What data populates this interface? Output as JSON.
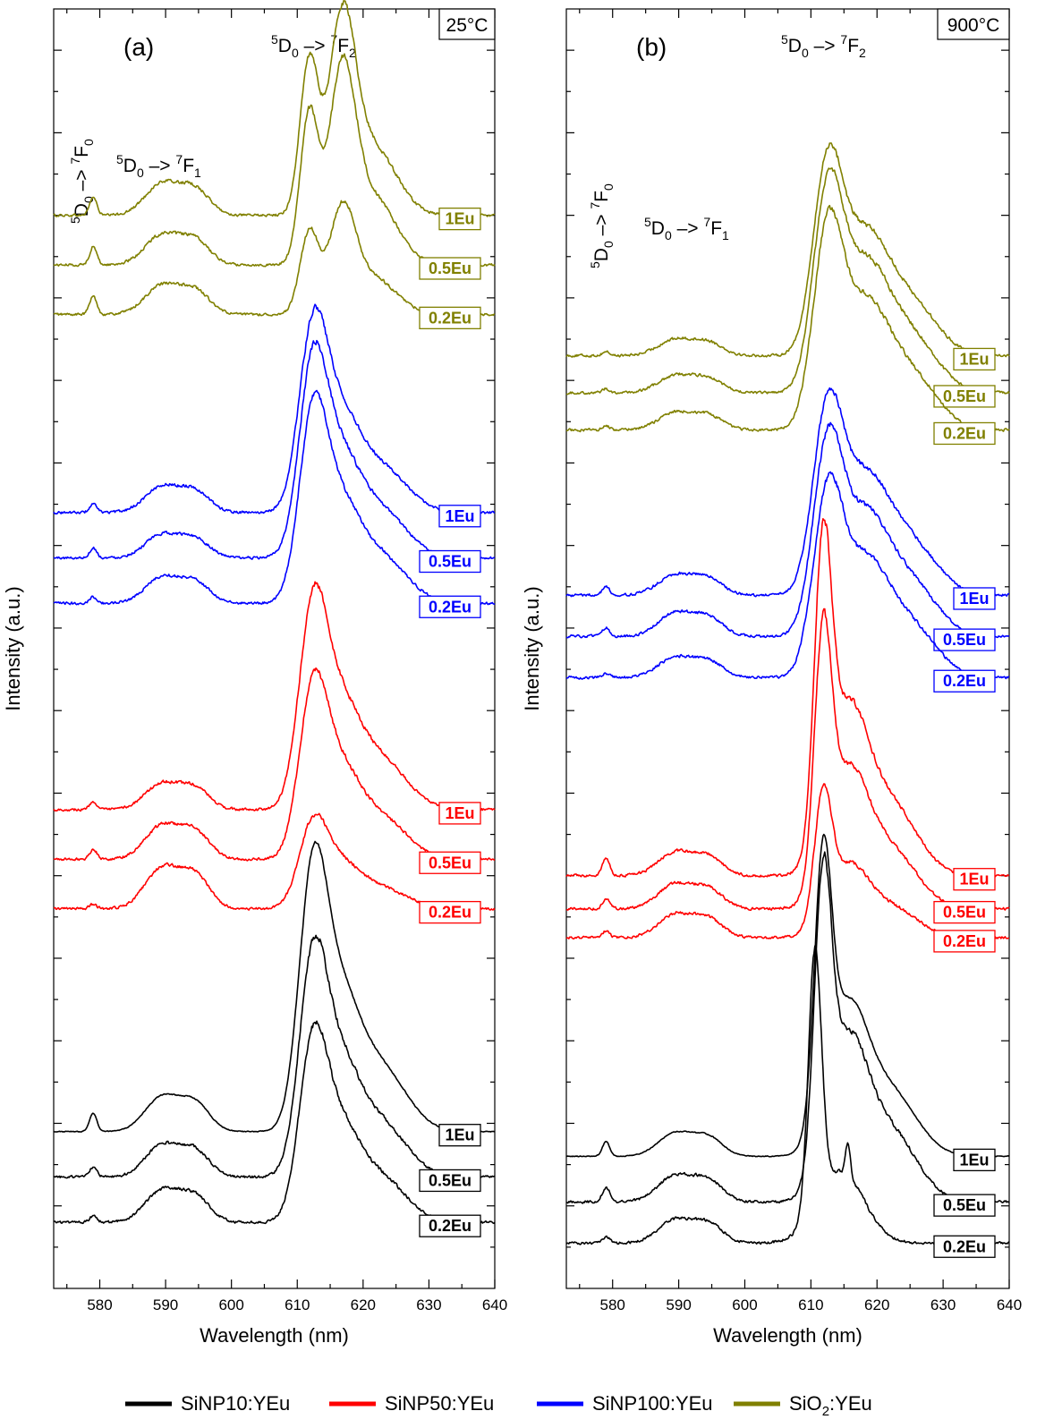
{
  "chart_data": [
    {
      "type": "line",
      "panel": "(a)",
      "temperature_label": "25°C",
      "xlabel": "Wavelength (nm)",
      "ylabel": "Intensity (a.u.)",
      "xlim": [
        573,
        640
      ],
      "xticks": [
        580,
        590,
        600,
        610,
        620,
        630,
        640
      ],
      "yticks_labeled": false,
      "layout": "vertically offset (stacked) spectra",
      "annotations": [
        "5D0 -> 7F0",
        "5D0 -> 7F1",
        "5D0 -> 7F2"
      ],
      "series": [
        {
          "name": "SiO2:YEu",
          "group": "SiO2:YEu",
          "label": "1Eu",
          "color": "#808000",
          "offset": 13.0,
          "profile": {
            "f0": 0.22,
            "f1": 0.55,
            "f2": 2.35,
            "split": true
          }
        },
        {
          "name": "SiO2:YEu",
          "group": "SiO2:YEu",
          "label": "0.5Eu",
          "color": "#808000",
          "offset": 12.4,
          "profile": {
            "f0": 0.22,
            "f1": 0.52,
            "f2": 2.3,
            "split": true
          }
        },
        {
          "name": "SiO2:YEu",
          "group": "SiO2:YEu",
          "label": "0.2Eu",
          "color": "#808000",
          "offset": 11.8,
          "profile": {
            "f0": 0.22,
            "f1": 0.5,
            "f2": 1.25,
            "split": true
          }
        },
        {
          "name": "SiNP100:YEu",
          "group": "SiNP100:YEu",
          "label": "1Eu",
          "color": "#0000ff",
          "offset": 9.4,
          "profile": {
            "f0": 0.1,
            "f1": 0.45,
            "f2": 1.95
          }
        },
        {
          "name": "SiNP100:YEu",
          "group": "SiNP100:YEu",
          "label": "0.5Eu",
          "color": "#0000ff",
          "offset": 8.85,
          "profile": {
            "f0": 0.12,
            "f1": 0.4,
            "f2": 2.05
          }
        },
        {
          "name": "SiNP100:YEu",
          "group": "SiNP100:YEu",
          "label": "0.2Eu",
          "color": "#0000ff",
          "offset": 8.3,
          "profile": {
            "f0": 0.08,
            "f1": 0.45,
            "f2": 2.0
          }
        },
        {
          "name": "SiNP50:YEu",
          "group": "SiNP50:YEu",
          "label": "1Eu",
          "color": "#ff0000",
          "offset": 5.8,
          "profile": {
            "f0": 0.1,
            "f1": 0.45,
            "f2": 2.15
          }
        },
        {
          "name": "SiNP50:YEu",
          "group": "SiNP50:YEu",
          "label": "0.5Eu",
          "color": "#ff0000",
          "offset": 5.2,
          "profile": {
            "f0": 0.12,
            "f1": 0.58,
            "f2": 1.8
          }
        },
        {
          "name": "SiNP50:YEu",
          "group": "SiNP50:YEu",
          "label": "0.2Eu",
          "color": "#ff0000",
          "offset": 4.6,
          "profile": {
            "f0": 0.05,
            "f1": 0.7,
            "f2": 0.9
          }
        },
        {
          "name": "SiNP10:YEu",
          "group": "SiNP10:YEu",
          "label": "1Eu",
          "color": "#000000",
          "offset": 1.9,
          "profile": {
            "f0": 0.22,
            "f1": 0.6,
            "f2": 2.75
          }
        },
        {
          "name": "SiNP10:YEu",
          "group": "SiNP10:YEu",
          "label": "0.5Eu",
          "color": "#000000",
          "offset": 1.35,
          "profile": {
            "f0": 0.12,
            "f1": 0.55,
            "f2": 2.3
          }
        },
        {
          "name": "SiNP10:YEu",
          "group": "SiNP10:YEu",
          "label": "0.2Eu",
          "color": "#000000",
          "offset": 0.8,
          "profile": {
            "f0": 0.08,
            "f1": 0.55,
            "f2": 1.9
          }
        }
      ]
    },
    {
      "type": "line",
      "panel": "(b)",
      "temperature_label": "900°C",
      "xlabel": "Wavelength (nm)",
      "ylabel": "Intensity (a.u.)",
      "xlim": [
        573,
        640
      ],
      "xticks": [
        580,
        590,
        600,
        610,
        620,
        630,
        640
      ],
      "yticks_labeled": false,
      "layout": "vertically offset (stacked) spectra",
      "annotations": [
        "5D0 -> 7F0",
        "5D0 -> 7F1",
        "5D0 -> 7F2"
      ],
      "series": [
        {
          "name": "SiO2:YEu",
          "group": "SiO2:YEu",
          "label": "1Eu",
          "color": "#808000",
          "offset": 11.3,
          "profile": {
            "f0": 0.05,
            "f1": 0.28,
            "f2": 2.5,
            "broad": true
          }
        },
        {
          "name": "SiO2:YEu",
          "group": "SiO2:YEu",
          "label": "0.5Eu",
          "color": "#808000",
          "offset": 10.85,
          "profile": {
            "f0": 0.05,
            "f1": 0.3,
            "f2": 2.65,
            "broad": true
          }
        },
        {
          "name": "SiO2:YEu",
          "group": "SiO2:YEu",
          "label": "0.2Eu",
          "color": "#808000",
          "offset": 10.4,
          "profile": {
            "f0": 0.05,
            "f1": 0.3,
            "f2": 2.6,
            "broad": true
          }
        },
        {
          "name": "SiNP100:YEu",
          "group": "SiNP100:YEu",
          "label": "1Eu",
          "color": "#0000ff",
          "offset": 8.4,
          "profile": {
            "f0": 0.1,
            "f1": 0.35,
            "f2": 2.45,
            "broad": true
          }
        },
        {
          "name": "SiNP100:YEu",
          "group": "SiNP100:YEu",
          "label": "0.5Eu",
          "color": "#0000ff",
          "offset": 7.9,
          "profile": {
            "f0": 0.1,
            "f1": 0.4,
            "f2": 2.5,
            "broad": true
          }
        },
        {
          "name": "SiNP100:YEu",
          "group": "SiNP100:YEu",
          "label": "0.2Eu",
          "color": "#0000ff",
          "offset": 7.4,
          "profile": {
            "f0": 0.05,
            "f1": 0.35,
            "f2": 2.4,
            "broad": true
          }
        },
        {
          "name": "SiNP50:YEu",
          "group": "SiNP50:YEu",
          "label": "1Eu",
          "color": "#ff0000",
          "offset": 5.0,
          "profile": {
            "f0": 0.22,
            "f1": 0.4,
            "f2": 3.4,
            "sharp": true
          }
        },
        {
          "name": "SiNP50:YEu",
          "group": "SiNP50:YEu",
          "label": "0.5Eu",
          "color": "#ff0000",
          "offset": 4.6,
          "profile": {
            "f0": 0.12,
            "f1": 0.42,
            "f2": 2.8,
            "sharp": true
          }
        },
        {
          "name": "SiNP50:YEu",
          "group": "SiNP50:YEu",
          "label": "0.2Eu",
          "color": "#ff0000",
          "offset": 4.25,
          "profile": {
            "f0": 0.08,
            "f1": 0.4,
            "f2": 1.45,
            "sharp": true
          }
        },
        {
          "name": "SiNP10:YEu",
          "group": "SiNP10:YEu",
          "label": "1Eu",
          "color": "#000000",
          "offset": 1.6,
          "profile": {
            "f0": 0.18,
            "f1": 0.4,
            "f2": 3.05,
            "sharp": true
          }
        },
        {
          "name": "SiNP10:YEu",
          "group": "SiNP10:YEu",
          "label": "0.5Eu",
          "color": "#000000",
          "offset": 1.05,
          "profile": {
            "f0": 0.18,
            "f1": 0.45,
            "f2": 3.3,
            "sharp": true
          }
        },
        {
          "name": "SiNP10:YEu",
          "group": "SiNP10:YEu",
          "label": "0.2Eu",
          "color": "#000000",
          "offset": 0.55,
          "profile": {
            "f0": 0.08,
            "f1": 0.4,
            "f2": 3.1,
            "narrow": true
          }
        }
      ]
    }
  ],
  "legend": [
    {
      "name": "SiNP10:YEu",
      "color": "#000000"
    },
    {
      "name": "SiNP50:YEu",
      "color": "#ff0000"
    },
    {
      "name": "SiNP100:YEu",
      "color": "#0000ff"
    },
    {
      "name": "SiO",
      "sub": "2",
      "suffix": ":YEu",
      "color": "#808000"
    }
  ],
  "labels": {
    "panel_a": "(a)",
    "panel_b": "(b)",
    "temp_a": "25°C",
    "temp_b": "900°C",
    "xlabel": "Wavelength (nm)",
    "ylabel": "Intensity (a.u.)",
    "t_sup5": "5",
    "t_D": "D",
    "t_sub0": "0",
    "t_arrow": " –> ",
    "t_sup7": "7",
    "t_F": "F",
    "t_sub_f0": "0",
    "t_sub_f1": "1",
    "t_sub_f2": "2"
  }
}
